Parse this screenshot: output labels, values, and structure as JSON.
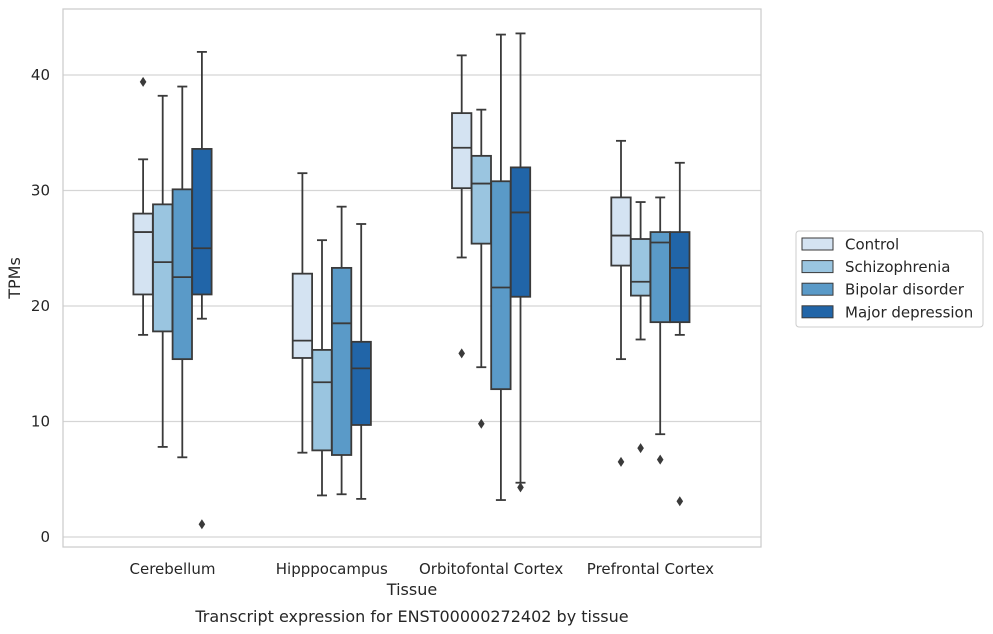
{
  "chart_data": {
    "type": "box",
    "title": "",
    "caption": "Transcript expression for ENST00000272402 by tissue",
    "xlabel": "Tissue",
    "ylabel": "TPMs",
    "ylim": [
      -1,
      45
    ],
    "yticks": [
      0,
      10,
      20,
      30,
      40
    ],
    "grid": "horizontal",
    "legend_position": "right",
    "categories": [
      "Cerebellum",
      "Hipppocampus",
      "Orbitofontal Cortex",
      "Prefrontal Cortex"
    ],
    "series": [
      {
        "name": "Control",
        "color": "#d4e3f2",
        "boxes": [
          {
            "whisker_low": 17.5,
            "q1": 21.0,
            "median": 26.4,
            "q3": 28.0,
            "whisker_high": 32.7,
            "outliers": [
              39.4
            ]
          },
          {
            "whisker_low": 7.3,
            "q1": 15.5,
            "median": 17.0,
            "q3": 22.8,
            "whisker_high": 31.5,
            "outliers": []
          },
          {
            "whisker_low": 24.2,
            "q1": 30.2,
            "median": 33.7,
            "q3": 36.7,
            "whisker_high": 41.7,
            "outliers": [
              15.9
            ]
          },
          {
            "whisker_low": 15.4,
            "q1": 23.5,
            "median": 26.1,
            "q3": 29.4,
            "whisker_high": 34.3,
            "outliers": [
              6.5
            ]
          }
        ]
      },
      {
        "name": "Schizophrenia",
        "color": "#9ac5e0",
        "boxes": [
          {
            "whisker_low": 7.8,
            "q1": 17.8,
            "median": 23.8,
            "q3": 28.8,
            "whisker_high": 38.2,
            "outliers": []
          },
          {
            "whisker_low": 3.6,
            "q1": 7.5,
            "median": 13.4,
            "q3": 16.2,
            "whisker_high": 25.7,
            "outliers": []
          },
          {
            "whisker_low": 14.7,
            "q1": 25.4,
            "median": 30.6,
            "q3": 33.0,
            "whisker_high": 37.0,
            "outliers": [
              9.8
            ]
          },
          {
            "whisker_low": 17.1,
            "q1": 20.9,
            "median": 22.1,
            "q3": 25.8,
            "whisker_high": 29.0,
            "outliers": [
              7.7
            ]
          }
        ]
      },
      {
        "name": "Bipolar disorder",
        "color": "#5a9ac8",
        "boxes": [
          {
            "whisker_low": 6.9,
            "q1": 15.4,
            "median": 22.5,
            "q3": 30.1,
            "whisker_high": 39.0,
            "outliers": []
          },
          {
            "whisker_low": 3.7,
            "q1": 7.1,
            "median": 18.5,
            "q3": 23.3,
            "whisker_high": 28.6,
            "outliers": []
          },
          {
            "whisker_low": 3.2,
            "q1": 12.8,
            "median": 21.6,
            "q3": 30.8,
            "whisker_high": 43.5,
            "outliers": []
          },
          {
            "whisker_low": 8.9,
            "q1": 18.6,
            "median": 25.5,
            "q3": 26.4,
            "whisker_high": 29.4,
            "outliers": [
              6.7
            ]
          }
        ]
      },
      {
        "name": "Major depression",
        "color": "#2165a8",
        "boxes": [
          {
            "whisker_low": 18.9,
            "q1": 21.0,
            "median": 25.0,
            "q3": 33.6,
            "whisker_high": 42.0,
            "outliers": [
              1.1
            ]
          },
          {
            "whisker_low": 3.3,
            "q1": 9.7,
            "median": 14.6,
            "q3": 16.9,
            "whisker_high": 27.1,
            "outliers": []
          },
          {
            "whisker_low": 4.7,
            "q1": 20.8,
            "median": 28.1,
            "q3": 32.0,
            "whisker_high": 43.6,
            "outliers": [
              4.3
            ]
          },
          {
            "whisker_low": 17.5,
            "q1": 18.6,
            "median": 23.3,
            "q3": 26.4,
            "whisker_high": 32.4,
            "outliers": [
              3.1
            ]
          }
        ]
      }
    ]
  }
}
